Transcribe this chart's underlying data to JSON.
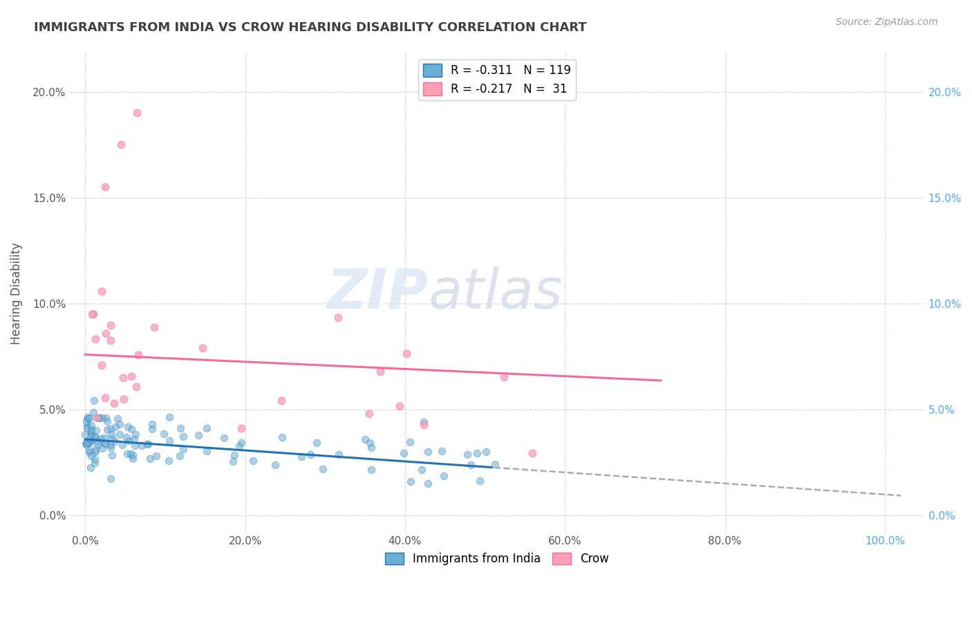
{
  "title": "IMMIGRANTS FROM INDIA VS CROW HEARING DISABILITY CORRELATION CHART",
  "source": "Source: ZipAtlas.com",
  "ylabel_label": "Hearing Disability",
  "x_tick_labels": [
    "0.0%",
    "20.0%",
    "40.0%",
    "60.0%",
    "80.0%",
    "100.0%"
  ],
  "x_tick_values": [
    0.0,
    0.2,
    0.4,
    0.6,
    0.8,
    1.0
  ],
  "y_tick_labels": [
    "0.0%",
    "5.0%",
    "10.0%",
    "15.0%",
    "20.0%"
  ],
  "y_tick_values": [
    0.0,
    0.05,
    0.1,
    0.15,
    0.2
  ],
  "xlim": [
    -0.02,
    1.05
  ],
  "ylim": [
    -0.008,
    0.218
  ],
  "legend_r1": "R = -0.311",
  "legend_n1": "N = 119",
  "legend_r2": "R = -0.217",
  "legend_n2": "N =  31",
  "legend_label1": "Immigrants from India",
  "legend_label2": "Crow",
  "color_india": "#6baed6",
  "color_crow": "#fa9fb5",
  "trendline_india_color": "#2171b5",
  "trendline_crow_color": "#f768a1",
  "trendline_ext_color": "#aaaaaa",
  "watermark_zip": "ZIP",
  "watermark_atlas": "atlas",
  "background_color": "#ffffff",
  "grid_color": "#cccccc",
  "title_color": "#404040",
  "right_tick_color": "#4da6ff",
  "bottom_tick_color": "#4da6ff"
}
